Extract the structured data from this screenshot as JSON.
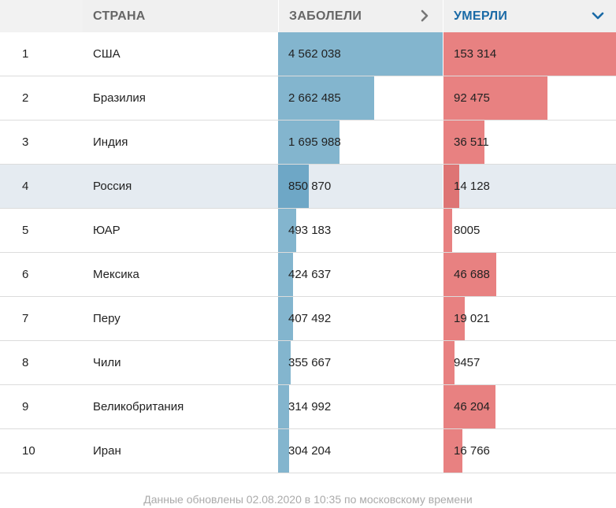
{
  "header": {
    "rank": "",
    "country": "Страна",
    "cases": "Заболели",
    "deaths": "Умерли"
  },
  "icons": {
    "cases_sort": "chevron-right-icon",
    "deaths_sort": "chevron-down-icon"
  },
  "colors": {
    "cases_bar": "#83b5ce",
    "deaths_bar": "#e88181",
    "active_header": "#1a6aa6",
    "highlight_row": "#e5ebf1"
  },
  "highlighted_rank": 4,
  "chart_data": {
    "type": "table",
    "columns": [
      "",
      "Страна",
      "Заболели",
      "Умерли"
    ],
    "rows": [
      {
        "rank": "1",
        "country": "США",
        "cases": 4562038,
        "cases_label": "4 562 038",
        "deaths": 153314,
        "deaths_label": "153 314"
      },
      {
        "rank": "2",
        "country": "Бразилия",
        "cases": 2662485,
        "cases_label": "2 662 485",
        "deaths": 92475,
        "deaths_label": "92 475"
      },
      {
        "rank": "3",
        "country": "Индия",
        "cases": 1695988,
        "cases_label": "1 695 988",
        "deaths": 36511,
        "deaths_label": "36 511"
      },
      {
        "rank": "4",
        "country": "Россия",
        "cases": 850870,
        "cases_label": "850 870",
        "deaths": 14128,
        "deaths_label": "14 128"
      },
      {
        "rank": "5",
        "country": "ЮАР",
        "cases": 493183,
        "cases_label": "493 183",
        "deaths": 8005,
        "deaths_label": "8005"
      },
      {
        "rank": "6",
        "country": "Мексика",
        "cases": 424637,
        "cases_label": "424 637",
        "deaths": 46688,
        "deaths_label": "46 688"
      },
      {
        "rank": "7",
        "country": "Перу",
        "cases": 407492,
        "cases_label": "407 492",
        "deaths": 19021,
        "deaths_label": "19 021"
      },
      {
        "rank": "8",
        "country": "Чили",
        "cases": 355667,
        "cases_label": "355 667",
        "deaths": 9457,
        "deaths_label": "9457"
      },
      {
        "rank": "9",
        "country": "Великобритания",
        "cases": 314992,
        "cases_label": "314 992",
        "deaths": 46204,
        "deaths_label": "46 204"
      },
      {
        "rank": "10",
        "country": "Иран",
        "cases": 304204,
        "cases_label": "304 204",
        "deaths": 16766,
        "deaths_label": "16 766"
      }
    ]
  },
  "footer": "Данные обновлены 02.08.2020 в 10:35 по московскому времени"
}
